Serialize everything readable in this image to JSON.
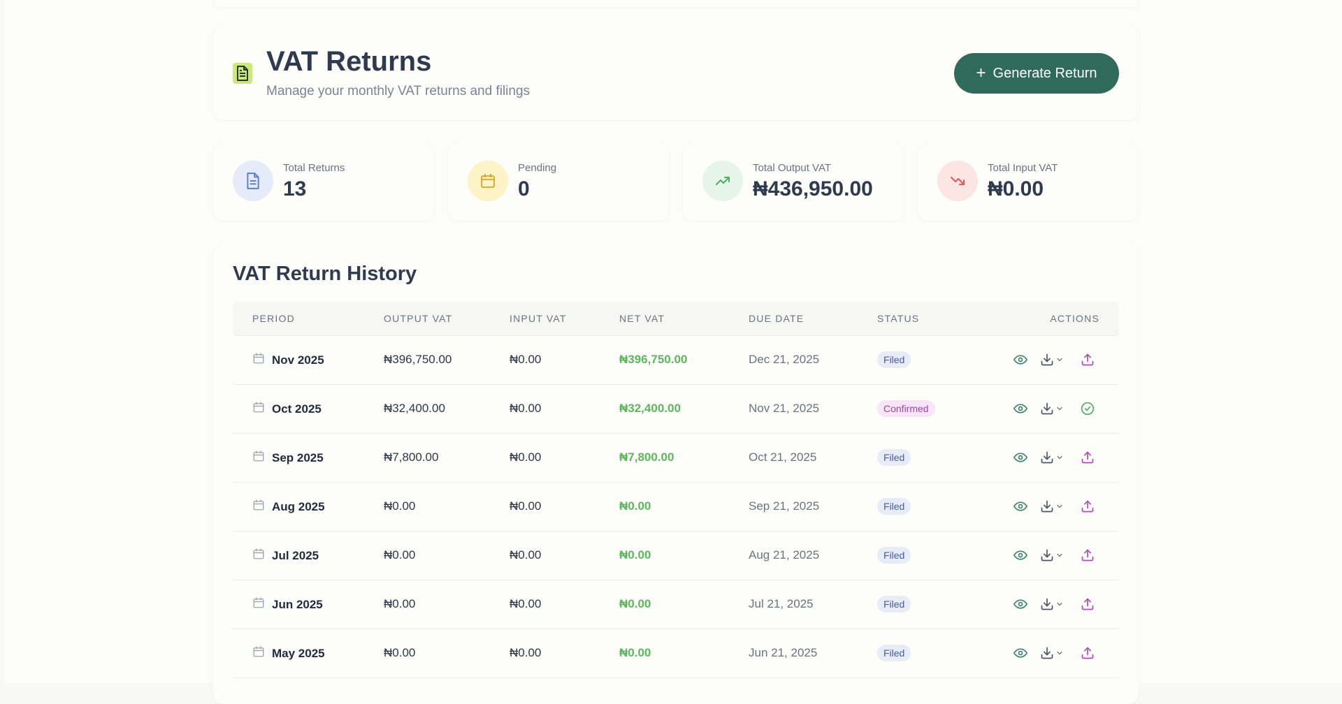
{
  "header": {
    "title": "VAT Returns",
    "subtitle": "Manage your monthly VAT returns and filings",
    "generate_label": "Generate Return",
    "icon": "document-icon"
  },
  "stats": [
    {
      "label": "Total Returns",
      "value": "13",
      "icon": "document-icon",
      "color": "#5b7fd6",
      "bg": "#e6ebfa"
    },
    {
      "label": "Pending",
      "value": "0",
      "icon": "calendar-icon",
      "color": "#d9a419",
      "bg": "#fdf3c6"
    },
    {
      "label": "Total Output VAT",
      "value": "₦436,950.00",
      "icon": "trending-up-icon",
      "color": "#4caf63",
      "bg": "#e5f6e8"
    },
    {
      "label": "Total Input VAT",
      "value": "₦0.00",
      "icon": "trending-down-icon",
      "color": "#e05a4f",
      "bg": "#fce5e3"
    }
  ],
  "history": {
    "title": "VAT Return History",
    "columns": [
      "PERIOD",
      "OUTPUT VAT",
      "INPUT VAT",
      "NET VAT",
      "DUE DATE",
      "STATUS",
      "ACTIONS"
    ],
    "rows": [
      {
        "period": "Nov 2025",
        "output": "₦396,750.00",
        "input": "₦0.00",
        "net": "₦396,750.00",
        "due": "Dec 21, 2025",
        "status": "Filed"
      },
      {
        "period": "Oct 2025",
        "output": "₦32,400.00",
        "input": "₦0.00",
        "net": "₦32,400.00",
        "due": "Nov 21, 2025",
        "status": "Confirmed"
      },
      {
        "period": "Sep 2025",
        "output": "₦7,800.00",
        "input": "₦0.00",
        "net": "₦7,800.00",
        "due": "Oct 21, 2025",
        "status": "Filed"
      },
      {
        "period": "Aug 2025",
        "output": "₦0.00",
        "input": "₦0.00",
        "net": "₦0.00",
        "due": "Sep 21, 2025",
        "status": "Filed"
      },
      {
        "period": "Jul 2025",
        "output": "₦0.00",
        "input": "₦0.00",
        "net": "₦0.00",
        "due": "Aug 21, 2025",
        "status": "Filed"
      },
      {
        "period": "Jun 2025",
        "output": "₦0.00",
        "input": "₦0.00",
        "net": "₦0.00",
        "due": "Jul 21, 2025",
        "status": "Filed"
      },
      {
        "period": "May 2025",
        "output": "₦0.00",
        "input": "₦0.00",
        "net": "₦0.00",
        "due": "Jun 21, 2025",
        "status": "Filed"
      }
    ]
  },
  "colors": {
    "primary": "#2f6a5b",
    "net_positive": "#5cb85c",
    "action_view": "#3a8570",
    "action_download": "#4b5563",
    "action_submit": "#b347c4",
    "action_confirmed": "#4caf63"
  }
}
